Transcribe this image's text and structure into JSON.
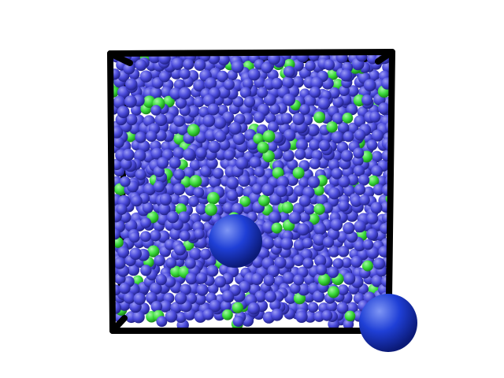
{
  "scene": {
    "background_color": "#ffffff",
    "box_color": "#000000",
    "small_particle_colors": {
      "majority": "#4b4bdc",
      "majority_highlight": "#9a9af5",
      "majority_shadow": "#22228a",
      "minority": "#3ddc3d",
      "minority_highlight": "#a4f7a4",
      "minority_shadow": "#1a8a1a"
    },
    "large_sphere_color": "#1f3fd6",
    "large_sphere_highlight": "#7f96f5",
    "large_sphere_shadow": "#0b1a78",
    "minority_fraction": 0.08,
    "large_sphere_count": 2
  }
}
